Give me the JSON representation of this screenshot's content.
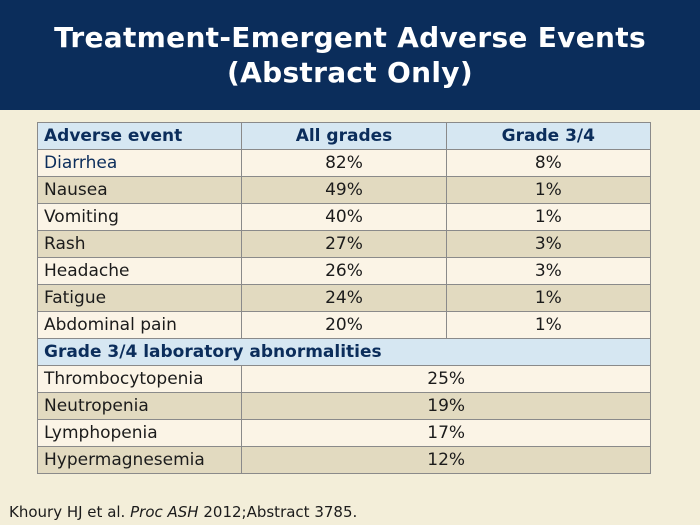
{
  "title": "Treatment-Emergent Adverse Events (Abstract Only)",
  "table": {
    "headers": [
      "Adverse event",
      "All grades",
      "Grade 3/4"
    ],
    "rows": [
      {
        "event": "Diarrhea",
        "all_grades": "82%",
        "grade34": "8%"
      },
      {
        "event": "Nausea",
        "all_grades": "49%",
        "grade34": "1%"
      },
      {
        "event": "Vomiting",
        "all_grades": "40%",
        "grade34": "1%"
      },
      {
        "event": "Rash",
        "all_grades": "27%",
        "grade34": "3%"
      },
      {
        "event": "Headache",
        "all_grades": "26%",
        "grade34": "3%"
      },
      {
        "event": "Fatigue",
        "all_grades": "24%",
        "grade34": "1%"
      },
      {
        "event": "Abdominal pain",
        "all_grades": "20%",
        "grade34": "1%"
      }
    ],
    "section_header": "Grade 3/4 laboratory abnormalities",
    "lab_rows": [
      {
        "event": "Thrombocytopenia",
        "value": "25%"
      },
      {
        "event": "Neutropenia",
        "value": "19%"
      },
      {
        "event": "Lymphopenia",
        "value": "17%"
      },
      {
        "event": "Hypermagnesemia",
        "value": "12%"
      }
    ]
  },
  "citation": {
    "authors": "Khoury HJ et al.",
    "journal": "Proc ASH",
    "rest": "2012;Abstract 3785."
  },
  "colors": {
    "title_bg": "#0b2d5b",
    "header_bg": "#d6e7f2",
    "row_light": "#fbf4e6",
    "row_dark": "#e2dac0",
    "page_bg": "#f3eed9"
  }
}
